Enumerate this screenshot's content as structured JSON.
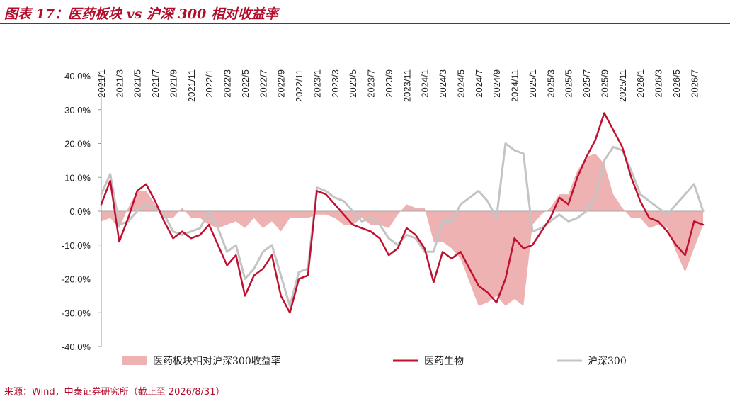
{
  "header": {
    "title": "图表 17：医药板块 vs 沪深 300 相对收益率"
  },
  "footer": {
    "source": "来源：Wind，中泰证券研究所（截止至 2026/8/31）"
  },
  "colors": {
    "accent": "#b30d2b",
    "pharma": "#c0102f",
    "hs300": "#c4c4c4",
    "relative_fill": "#eeb2b2"
  },
  "chart_data": {
    "type": "line",
    "title": "",
    "xlabel": "",
    "ylabel": "",
    "ylim": [
      -40,
      40
    ],
    "x_range": [
      "2021/1",
      "2026/8"
    ],
    "y_ticks": [
      "40.0%",
      "30.0%",
      "20.0%",
      "10.0%",
      "0.0%",
      "-10.0%",
      "-20.0%",
      "-30.0%",
      "-40.0%"
    ],
    "x_ticks": [
      "2021/1",
      "2021/3",
      "2021/5",
      "2021/7",
      "2021/9",
      "2021/11",
      "2022/1",
      "2022/3",
      "2022/5",
      "2022/7",
      "2022/9",
      "2022/11",
      "2023/1",
      "2023/3",
      "2023/5",
      "2023/7",
      "2023/9",
      "2023/11",
      "2024/1",
      "2024/3",
      "2024/5",
      "2024/7",
      "2024/9",
      "2024/11",
      "2025/1",
      "2025/3",
      "2025/5",
      "2025/7",
      "2025/9",
      "2025/11",
      "2026/1",
      "2026/3",
      "2026/5",
      "2026/7"
    ],
    "grid": false,
    "legend_position": "bottom",
    "legend": [
      "医药板块相对沪深300收益率",
      "医药生物",
      "沪深300"
    ],
    "series": [
      {
        "name": "医药生物",
        "type": "line",
        "x": [
          "2021/1",
          "2021/2",
          "2021/3",
          "2021/4",
          "2021/5",
          "2021/6",
          "2021/7",
          "2021/8",
          "2021/9",
          "2021/10",
          "2021/11",
          "2021/12",
          "2022/1",
          "2022/2",
          "2022/3",
          "2022/4",
          "2022/5",
          "2022/6",
          "2022/7",
          "2022/8",
          "2022/9",
          "2022/10",
          "2022/11",
          "2022/12",
          "2023/1",
          "2023/2",
          "2023/3",
          "2023/4",
          "2023/5",
          "2023/6",
          "2023/7",
          "2023/8",
          "2023/9",
          "2023/10",
          "2023/11",
          "2023/12",
          "2024/1",
          "2024/2",
          "2024/3",
          "2024/4",
          "2024/5",
          "2024/6",
          "2024/7",
          "2024/8",
          "2024/9",
          "2024/10",
          "2024/11",
          "2024/12",
          "2025/1",
          "2025/2",
          "2025/3",
          "2025/4",
          "2025/5",
          "2025/6",
          "2025/7",
          "2025/8",
          "2025/9",
          "2025/10",
          "2025/11",
          "2025/12",
          "2026/1",
          "2026/2",
          "2026/3",
          "2026/4",
          "2026/5",
          "2026/6",
          "2026/7",
          "2026/8"
        ],
        "values": [
          2,
          9,
          -9,
          -2,
          6,
          8,
          3,
          -3,
          -8,
          -6,
          -8,
          -7,
          -4,
          -10,
          -16,
          -13,
          -25,
          -19,
          -17,
          -13,
          -25,
          -30,
          -20,
          -19,
          6,
          5,
          2,
          -1,
          -4,
          -5,
          -6,
          -8,
          -13,
          -11,
          -5,
          -7,
          -11,
          -21,
          -12,
          -14,
          -12,
          -17,
          -22,
          -24,
          -27,
          -20,
          -8,
          -11,
          -10,
          -6,
          -2,
          4,
          2,
          10,
          16,
          21,
          29,
          24,
          19,
          10,
          3,
          -2,
          -3,
          -6,
          -10,
          -13,
          -3,
          -4
        ]
      },
      {
        "name": "沪深300",
        "type": "line",
        "x": [
          "2021/1",
          "2021/2",
          "2021/3",
          "2021/4",
          "2021/5",
          "2021/6",
          "2021/7",
          "2021/8",
          "2021/9",
          "2021/10",
          "2021/11",
          "2021/12",
          "2022/1",
          "2022/2",
          "2022/3",
          "2022/4",
          "2022/5",
          "2022/6",
          "2022/7",
          "2022/8",
          "2022/9",
          "2022/10",
          "2022/11",
          "2022/12",
          "2023/1",
          "2023/2",
          "2023/3",
          "2023/4",
          "2023/5",
          "2023/6",
          "2023/7",
          "2023/8",
          "2023/9",
          "2023/10",
          "2023/11",
          "2023/12",
          "2024/1",
          "2024/2",
          "2024/3",
          "2024/4",
          "2024/5",
          "2024/6",
          "2024/7",
          "2024/8",
          "2024/9",
          "2024/10",
          "2024/11",
          "2024/12",
          "2025/1",
          "2025/2",
          "2025/3",
          "2025/4",
          "2025/5",
          "2025/6",
          "2025/7",
          "2025/8",
          "2025/9",
          "2025/10",
          "2025/11",
          "2025/12",
          "2026/1",
          "2026/2",
          "2026/3",
          "2026/4",
          "2026/5",
          "2026/6",
          "2026/7",
          "2026/8"
        ],
        "values": [
          5,
          11,
          -4,
          -3,
          0,
          2,
          1,
          -1,
          -6,
          -7,
          -6,
          -5,
          0,
          -5,
          -12,
          -10,
          -20,
          -17,
          -12,
          -10,
          -19,
          -28,
          -18,
          -17,
          7,
          6,
          4,
          3,
          0,
          -3,
          -2,
          -4,
          -8,
          -10,
          -7,
          -8,
          -12,
          -12,
          -3,
          -3,
          2,
          4,
          6,
          3,
          -2,
          20,
          18,
          17,
          -6,
          -5,
          -3,
          -1,
          -3,
          -2,
          0,
          4,
          15,
          19,
          18,
          12,
          5,
          3,
          1,
          -1,
          2,
          5,
          8,
          0
        ]
      },
      {
        "name": "医药板块相对沪深300收益率",
        "type": "area",
        "x": [
          "2021/1",
          "2021/2",
          "2021/3",
          "2021/4",
          "2021/5",
          "2021/6",
          "2021/7",
          "2021/8",
          "2021/9",
          "2021/10",
          "2021/11",
          "2021/12",
          "2022/1",
          "2022/2",
          "2022/3",
          "2022/4",
          "2022/5",
          "2022/6",
          "2022/7",
          "2022/8",
          "2022/9",
          "2022/10",
          "2022/11",
          "2022/12",
          "2023/1",
          "2023/2",
          "2023/3",
          "2023/4",
          "2023/5",
          "2023/6",
          "2023/7",
          "2023/8",
          "2023/9",
          "2023/10",
          "2023/11",
          "2023/12",
          "2024/1",
          "2024/2",
          "2024/3",
          "2024/4",
          "2024/5",
          "2024/6",
          "2024/7",
          "2024/8",
          "2024/9",
          "2024/10",
          "2024/11",
          "2024/12",
          "2025/1",
          "2025/2",
          "2025/3",
          "2025/4",
          "2025/5",
          "2025/6",
          "2025/7",
          "2025/8",
          "2025/9",
          "2025/10",
          "2025/11",
          "2025/12",
          "2026/1",
          "2026/2",
          "2026/3",
          "2026/4",
          "2026/5",
          "2026/6",
          "2026/7",
          "2026/8"
        ],
        "values": [
          -3,
          -2,
          -5,
          1,
          6,
          6,
          2,
          -2,
          -2,
          1,
          -2,
          -2,
          -4,
          -5,
          -4,
          -3,
          -5,
          -2,
          -5,
          -3,
          -6,
          -2,
          -2,
          -2,
          -1,
          -1,
          -2,
          -4,
          -4,
          -2,
          -4,
          -4,
          -5,
          -1,
          2,
          1,
          1,
          -9,
          -9,
          -11,
          -14,
          -21,
          -28,
          -27,
          -25,
          -28,
          -26,
          -28,
          -4,
          -1,
          1,
          5,
          5,
          12,
          16,
          17,
          14,
          5,
          1,
          -2,
          -2,
          -5,
          -4,
          -5,
          -12,
          -18,
          -11,
          -4
        ]
      }
    ]
  }
}
